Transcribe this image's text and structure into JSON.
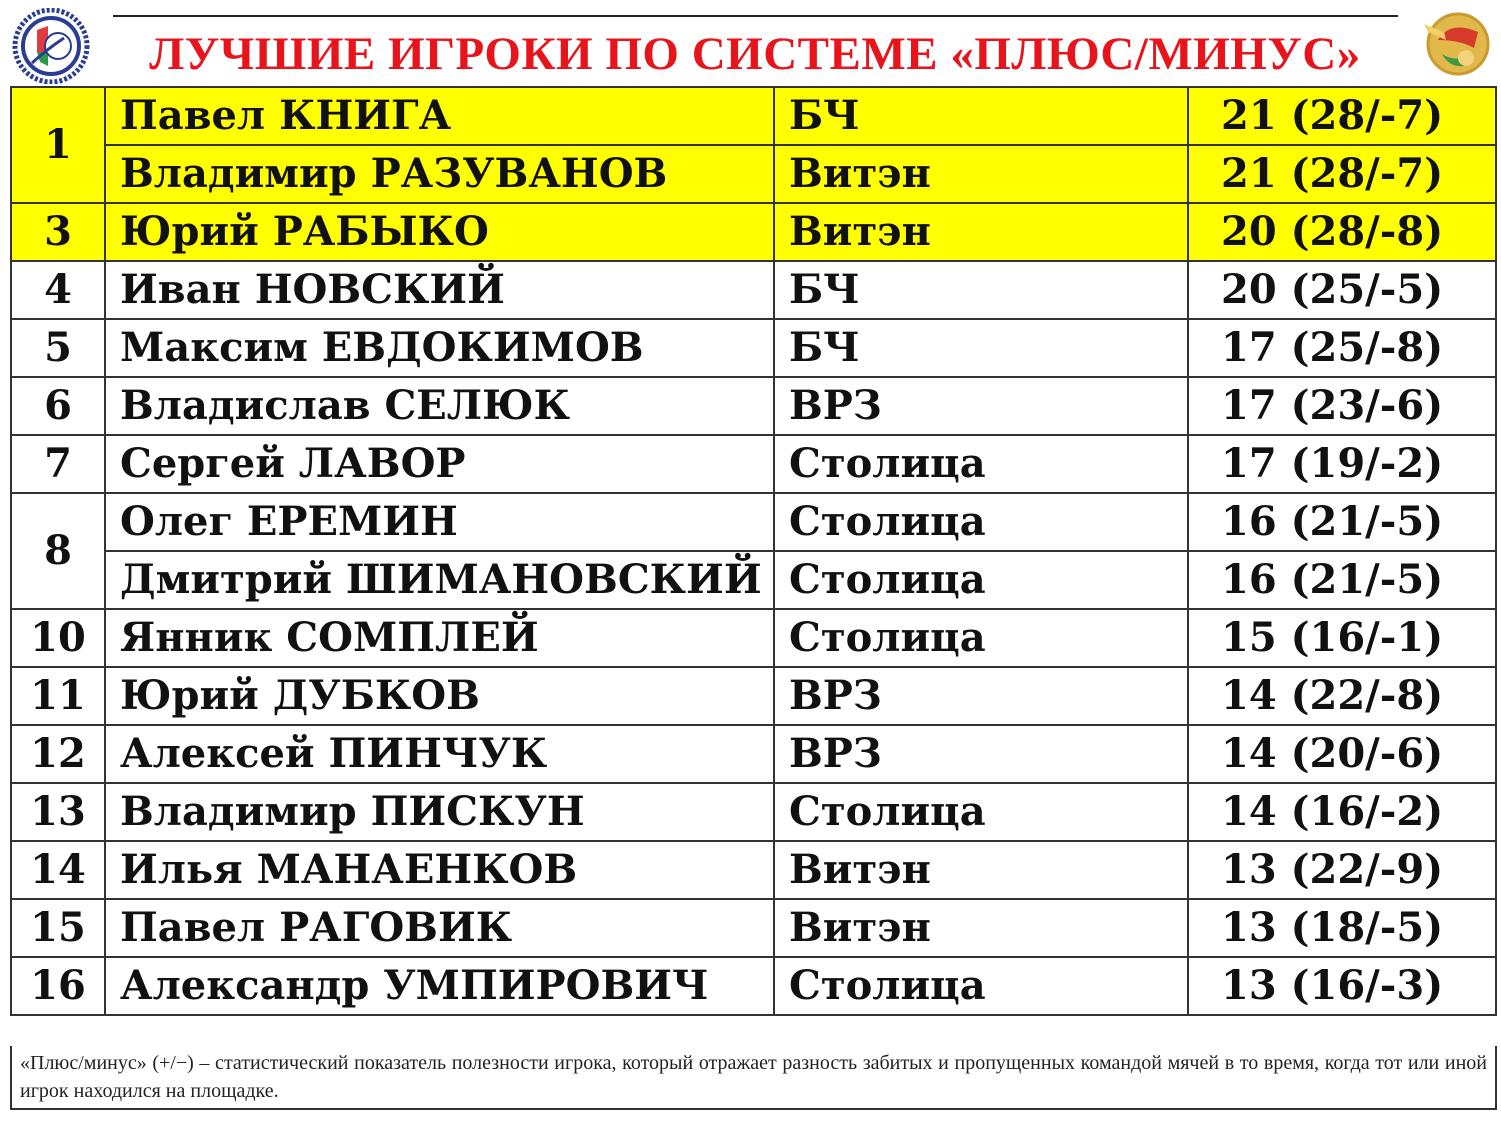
{
  "title": "ЛУЧШИЕ ИГРОКИ ПО СИСТЕМЕ «ПЛЮС/МИНУС»",
  "colors": {
    "title": "#e8141c",
    "highlight": "#ffff00"
  },
  "rows": [
    {
      "rank": "1",
      "name": "Павел КНИГА",
      "team": "БЧ",
      "score": "21 (28/-7)",
      "highlight": true
    },
    {
      "rank": "1",
      "name": "Владимир РАЗУВАНОВ",
      "team": "Витэн",
      "score": "21 (28/-7)",
      "highlight": true
    },
    {
      "rank": "3",
      "name": "Юрий РАБЫКО",
      "team": "Витэн",
      "score": "20 (28/-8)",
      "highlight": true
    },
    {
      "rank": "4",
      "name": "Иван НОВСКИЙ",
      "team": "БЧ",
      "score": "20 (25/-5)"
    },
    {
      "rank": "5",
      "name": "Максим ЕВДОКИМОВ",
      "team": "БЧ",
      "score": "17 (25/-8)"
    },
    {
      "rank": "6",
      "name": "Владислав СЕЛЮК",
      "team": "ВРЗ",
      "score": "17 (23/-6)"
    },
    {
      "rank": "7",
      "name": "Сергей ЛАВОР",
      "team": "Столица",
      "score": "17 (19/-2)"
    },
    {
      "rank": "8",
      "name": "Олег ЕРЕМИН",
      "team": "Столица",
      "score": "16 (21/-5)"
    },
    {
      "rank": "8",
      "name": "Дмитрий ШИМАНОВСКИЙ",
      "team": "Столица",
      "score": "16 (21/-5)"
    },
    {
      "rank": "10",
      "name": "Янник СОМПЛЕЙ",
      "team": "Столица",
      "score": "15 (16/-1)"
    },
    {
      "rank": "11",
      "name": "Юрий ДУБКОВ",
      "team": "ВРЗ",
      "score": "14 (22/-8)"
    },
    {
      "rank": "12",
      "name": "Алексей ПИНЧУК",
      "team": "ВРЗ",
      "score": "14 (20/-6)"
    },
    {
      "rank": "13",
      "name": "Владимир ПИСКУН",
      "team": "Столица",
      "score": "14 (16/-2)"
    },
    {
      "rank": "14",
      "name": "Илья МАНАЕНКОВ",
      "team": "Витэн",
      "score": "13 (22/-9)"
    },
    {
      "rank": "15",
      "name": "Павел РАГОВИК",
      "team": "Витэн",
      "score": "13 (18/-5)"
    },
    {
      "rank": "16",
      "name": "Александр УМПИРОВИЧ",
      "team": "Столица",
      "score": "13 (16/-3)"
    }
  ],
  "note": "«Плюс/минус» (+/−) – статистический показатель полезности игрока, который отражает разность забитых и пропущенных командой мячей в то время, когда тот или иной игрок находился на площадке."
}
